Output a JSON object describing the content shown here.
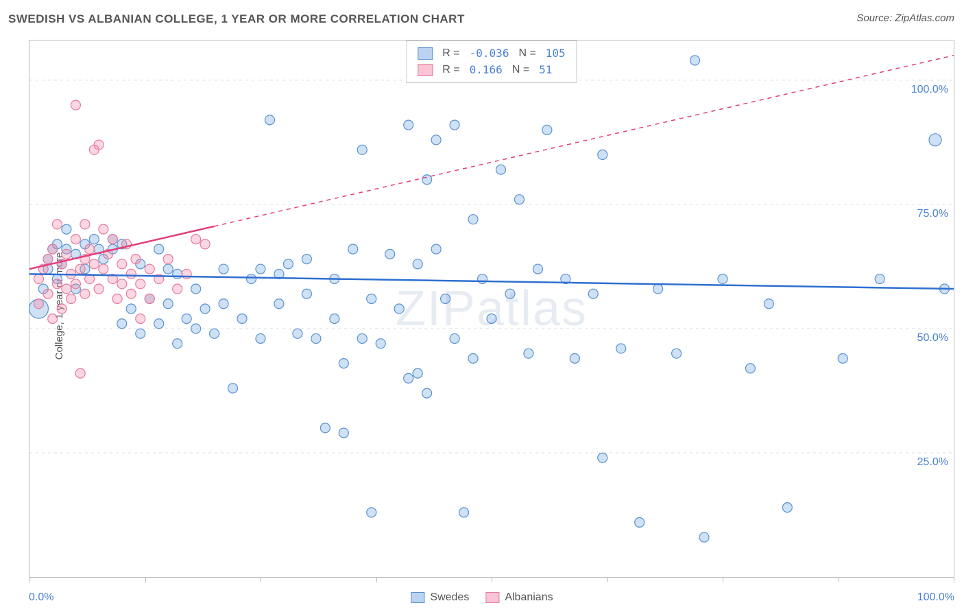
{
  "title": "SWEDISH VS ALBANIAN COLLEGE, 1 YEAR OR MORE CORRELATION CHART",
  "source": "Source: ZipAtlas.com",
  "watermark": "ZIPatlas",
  "chart": {
    "type": "scatter",
    "ylabel": "College, 1 year or more",
    "xlim": [
      0,
      100
    ],
    "ylim": [
      0,
      108
    ],
    "xtick_positions": [
      0,
      12.5,
      25,
      37.5,
      50,
      62.5,
      75,
      87.5,
      100
    ],
    "xaxis_label_left": "0.0%",
    "xaxis_label_right": "100.0%",
    "yticks": [
      {
        "v": 25,
        "label": "25.0%"
      },
      {
        "v": 50,
        "label": "50.0%"
      },
      {
        "v": 75,
        "label": "75.0%"
      },
      {
        "v": 100,
        "label": "100.0%"
      }
    ],
    "grid_dash_color": "#dddddd",
    "background_color": "#ffffff",
    "series": [
      {
        "name": "Swedes",
        "fill": "rgba(116,168,227,0.35)",
        "stroke": "#5a92d0",
        "marker_stroke_width": 1.2,
        "trend": {
          "y0": 61,
          "y1": 58,
          "color": "#2e6fd0",
          "width": 2.5,
          "dash": "none"
        },
        "stats": {
          "R": "-0.036",
          "N": "105"
        },
        "points": [
          {
            "x": 1,
            "y": 54,
            "r": 14
          },
          {
            "x": 1.5,
            "y": 58,
            "r": 7
          },
          {
            "x": 2,
            "y": 62,
            "r": 7
          },
          {
            "x": 2,
            "y": 64,
            "r": 7
          },
          {
            "x": 2.5,
            "y": 66,
            "r": 7
          },
          {
            "x": 3,
            "y": 60,
            "r": 7
          },
          {
            "x": 3,
            "y": 67,
            "r": 7
          },
          {
            "x": 3.5,
            "y": 63,
            "r": 7
          },
          {
            "x": 4,
            "y": 66,
            "r": 7
          },
          {
            "x": 4,
            "y": 70,
            "r": 7
          },
          {
            "x": 5,
            "y": 65,
            "r": 7
          },
          {
            "x": 5,
            "y": 58,
            "r": 7
          },
          {
            "x": 6,
            "y": 67,
            "r": 7
          },
          {
            "x": 6,
            "y": 62,
            "r": 7
          },
          {
            "x": 7,
            "y": 68,
            "r": 7
          },
          {
            "x": 7.5,
            "y": 66,
            "r": 7
          },
          {
            "x": 8,
            "y": 64,
            "r": 7
          },
          {
            "x": 9,
            "y": 68,
            "r": 7
          },
          {
            "x": 9,
            "y": 66,
            "r": 7
          },
          {
            "x": 10,
            "y": 51,
            "r": 7
          },
          {
            "x": 10,
            "y": 67,
            "r": 7
          },
          {
            "x": 11,
            "y": 54,
            "r": 7
          },
          {
            "x": 12,
            "y": 49,
            "r": 7
          },
          {
            "x": 12,
            "y": 63,
            "r": 7
          },
          {
            "x": 13,
            "y": 56,
            "r": 7
          },
          {
            "x": 14,
            "y": 66,
            "r": 7
          },
          {
            "x": 14,
            "y": 51,
            "r": 7
          },
          {
            "x": 15,
            "y": 62,
            "r": 7
          },
          {
            "x": 15,
            "y": 55,
            "r": 7
          },
          {
            "x": 16,
            "y": 47,
            "r": 7
          },
          {
            "x": 16,
            "y": 61,
            "r": 7
          },
          {
            "x": 17,
            "y": 52,
            "r": 7
          },
          {
            "x": 18,
            "y": 50,
            "r": 7
          },
          {
            "x": 18,
            "y": 58,
            "r": 7
          },
          {
            "x": 19,
            "y": 54,
            "r": 7
          },
          {
            "x": 20,
            "y": 49,
            "r": 7
          },
          {
            "x": 21,
            "y": 55,
            "r": 7
          },
          {
            "x": 21,
            "y": 62,
            "r": 7
          },
          {
            "x": 22,
            "y": 38,
            "r": 7
          },
          {
            "x": 23,
            "y": 52,
            "r": 7
          },
          {
            "x": 24,
            "y": 60,
            "r": 7
          },
          {
            "x": 25,
            "y": 48,
            "r": 7
          },
          {
            "x": 25,
            "y": 62,
            "r": 7
          },
          {
            "x": 26,
            "y": 92,
            "r": 7
          },
          {
            "x": 27,
            "y": 61,
            "r": 7
          },
          {
            "x": 27,
            "y": 55,
            "r": 7
          },
          {
            "x": 28,
            "y": 63,
            "r": 7
          },
          {
            "x": 29,
            "y": 49,
            "r": 7
          },
          {
            "x": 30,
            "y": 57,
            "r": 7
          },
          {
            "x": 30,
            "y": 64,
            "r": 7
          },
          {
            "x": 31,
            "y": 48,
            "r": 7
          },
          {
            "x": 32,
            "y": 30,
            "r": 7
          },
          {
            "x": 33,
            "y": 52,
            "r": 7
          },
          {
            "x": 33,
            "y": 60,
            "r": 7
          },
          {
            "x": 34,
            "y": 43,
            "r": 7
          },
          {
            "x": 34,
            "y": 29,
            "r": 7
          },
          {
            "x": 35,
            "y": 66,
            "r": 7
          },
          {
            "x": 36,
            "y": 48,
            "r": 7
          },
          {
            "x": 36,
            "y": 86,
            "r": 7
          },
          {
            "x": 37,
            "y": 13,
            "r": 7
          },
          {
            "x": 37,
            "y": 56,
            "r": 7
          },
          {
            "x": 38,
            "y": 47,
            "r": 7
          },
          {
            "x": 39,
            "y": 65,
            "r": 7
          },
          {
            "x": 40,
            "y": 54,
            "r": 7
          },
          {
            "x": 41,
            "y": 40,
            "r": 7
          },
          {
            "x": 41,
            "y": 91,
            "r": 7
          },
          {
            "x": 42,
            "y": 63,
            "r": 7
          },
          {
            "x": 42,
            "y": 41,
            "r": 7
          },
          {
            "x": 43,
            "y": 80,
            "r": 7
          },
          {
            "x": 43,
            "y": 37,
            "r": 7
          },
          {
            "x": 44,
            "y": 66,
            "r": 7
          },
          {
            "x": 44,
            "y": 88,
            "r": 7
          },
          {
            "x": 45,
            "y": 56,
            "r": 7
          },
          {
            "x": 46,
            "y": 48,
            "r": 7
          },
          {
            "x": 46,
            "y": 91,
            "r": 7
          },
          {
            "x": 47,
            "y": 13,
            "r": 7
          },
          {
            "x": 48,
            "y": 44,
            "r": 7
          },
          {
            "x": 48,
            "y": 72,
            "r": 7
          },
          {
            "x": 49,
            "y": 60,
            "r": 7
          },
          {
            "x": 50,
            "y": 52,
            "r": 7
          },
          {
            "x": 51,
            "y": 82,
            "r": 7
          },
          {
            "x": 52,
            "y": 57,
            "r": 7
          },
          {
            "x": 53,
            "y": 76,
            "r": 7
          },
          {
            "x": 54,
            "y": 45,
            "r": 7
          },
          {
            "x": 55,
            "y": 62,
            "r": 7
          },
          {
            "x": 56,
            "y": 90,
            "r": 7
          },
          {
            "x": 58,
            "y": 60,
            "r": 7
          },
          {
            "x": 59,
            "y": 44,
            "r": 7
          },
          {
            "x": 61,
            "y": 57,
            "r": 7
          },
          {
            "x": 62,
            "y": 85,
            "r": 7
          },
          {
            "x": 62,
            "y": 24,
            "r": 7
          },
          {
            "x": 64,
            "y": 46,
            "r": 7
          },
          {
            "x": 66,
            "y": 11,
            "r": 7
          },
          {
            "x": 68,
            "y": 58,
            "r": 7
          },
          {
            "x": 70,
            "y": 45,
            "r": 7
          },
          {
            "x": 72,
            "y": 104,
            "r": 7
          },
          {
            "x": 73,
            "y": 8,
            "r": 7
          },
          {
            "x": 75,
            "y": 60,
            "r": 7
          },
          {
            "x": 78,
            "y": 42,
            "r": 7
          },
          {
            "x": 80,
            "y": 55,
            "r": 7
          },
          {
            "x": 82,
            "y": 14,
            "r": 7
          },
          {
            "x": 88,
            "y": 44,
            "r": 7
          },
          {
            "x": 92,
            "y": 60,
            "r": 7
          },
          {
            "x": 98,
            "y": 88,
            "r": 9
          },
          {
            "x": 99,
            "y": 58,
            "r": 7
          }
        ]
      },
      {
        "name": "Albanians",
        "fill": "rgba(240,140,170,0.35)",
        "stroke": "#e77aa0",
        "marker_stroke_width": 1.2,
        "trend": {
          "y0": 62,
          "y1": 105,
          "color": "#e23d7a",
          "width": 2.5,
          "dash_after": 20
        },
        "stats": {
          "R": "0.166",
          "N": "51"
        },
        "points": [
          {
            "x": 1,
            "y": 55,
            "r": 7
          },
          {
            "x": 1,
            "y": 60,
            "r": 7
          },
          {
            "x": 1.5,
            "y": 62,
            "r": 7
          },
          {
            "x": 2,
            "y": 57,
            "r": 7
          },
          {
            "x": 2,
            "y": 64,
            "r": 7
          },
          {
            "x": 2.5,
            "y": 66,
            "r": 7
          },
          {
            "x": 2.5,
            "y": 52,
            "r": 7
          },
          {
            "x": 3,
            "y": 71,
            "r": 7
          },
          {
            "x": 3,
            "y": 59,
            "r": 7
          },
          {
            "x": 3.5,
            "y": 63,
            "r": 7
          },
          {
            "x": 3.5,
            "y": 54,
            "r": 7
          },
          {
            "x": 4,
            "y": 65,
            "r": 7
          },
          {
            "x": 4,
            "y": 58,
            "r": 7
          },
          {
            "x": 4.5,
            "y": 61,
            "r": 7
          },
          {
            "x": 4.5,
            "y": 56,
            "r": 7
          },
          {
            "x": 5,
            "y": 68,
            "r": 7
          },
          {
            "x": 5,
            "y": 59,
            "r": 7
          },
          {
            "x": 5,
            "y": 95,
            "r": 7
          },
          {
            "x": 5.5,
            "y": 62,
            "r": 7
          },
          {
            "x": 5.5,
            "y": 41,
            "r": 7
          },
          {
            "x": 6,
            "y": 64,
            "r": 7
          },
          {
            "x": 6,
            "y": 71,
            "r": 7
          },
          {
            "x": 6,
            "y": 57,
            "r": 7
          },
          {
            "x": 6.5,
            "y": 60,
            "r": 7
          },
          {
            "x": 6.5,
            "y": 66,
            "r": 7
          },
          {
            "x": 7,
            "y": 63,
            "r": 7
          },
          {
            "x": 7,
            "y": 86,
            "r": 7
          },
          {
            "x": 7.5,
            "y": 87,
            "r": 7
          },
          {
            "x": 7.5,
            "y": 58,
            "r": 7
          },
          {
            "x": 8,
            "y": 70,
            "r": 7
          },
          {
            "x": 8,
            "y": 62,
            "r": 7
          },
          {
            "x": 8.5,
            "y": 65,
            "r": 7
          },
          {
            "x": 9,
            "y": 60,
            "r": 7
          },
          {
            "x": 9,
            "y": 68,
            "r": 7
          },
          {
            "x": 9.5,
            "y": 56,
            "r": 7
          },
          {
            "x": 10,
            "y": 63,
            "r": 7
          },
          {
            "x": 10,
            "y": 59,
            "r": 7
          },
          {
            "x": 10.5,
            "y": 67,
            "r": 7
          },
          {
            "x": 11,
            "y": 61,
            "r": 7
          },
          {
            "x": 11,
            "y": 57,
            "r": 7
          },
          {
            "x": 11.5,
            "y": 64,
            "r": 7
          },
          {
            "x": 12,
            "y": 59,
            "r": 7
          },
          {
            "x": 12,
            "y": 52,
            "r": 7
          },
          {
            "x": 13,
            "y": 62,
            "r": 7
          },
          {
            "x": 13,
            "y": 56,
            "r": 7
          },
          {
            "x": 14,
            "y": 60,
            "r": 7
          },
          {
            "x": 15,
            "y": 64,
            "r": 7
          },
          {
            "x": 16,
            "y": 58,
            "r": 7
          },
          {
            "x": 17,
            "y": 61,
            "r": 7
          },
          {
            "x": 18,
            "y": 68,
            "r": 7
          },
          {
            "x": 19,
            "y": 67,
            "r": 7
          }
        ]
      }
    ],
    "legend_bottom": [
      {
        "label": "Swedes",
        "fill": "rgba(116,168,227,0.5)",
        "border": "#5a92d0"
      },
      {
        "label": "Albanians",
        "fill": "rgba(240,140,170,0.5)",
        "border": "#e77aa0"
      }
    ]
  }
}
